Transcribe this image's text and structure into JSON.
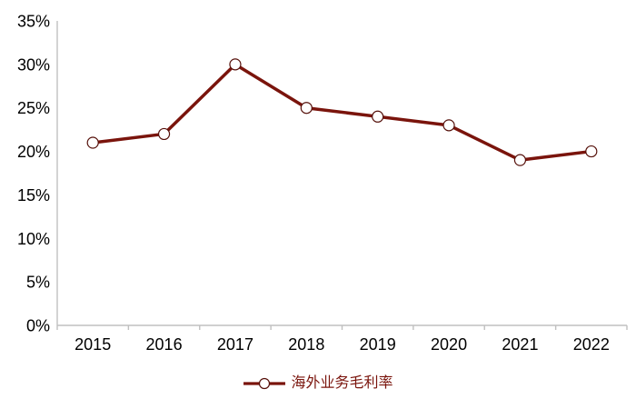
{
  "chart_data": {
    "type": "line",
    "title": "",
    "categories": [
      "2015",
      "2016",
      "2017",
      "2018",
      "2019",
      "2020",
      "2021",
      "2022"
    ],
    "series": [
      {
        "name": "海外业务毛利率",
        "values": [
          21,
          22,
          30,
          25,
          24,
          23,
          19,
          20
        ]
      }
    ],
    "ylim": [
      0,
      35
    ],
    "ytick_step": 5,
    "ytick_labels": [
      "0%",
      "5%",
      "10%",
      "15%",
      "20%",
      "25%",
      "30%",
      "35%"
    ],
    "xlabel": "",
    "ylabel": "",
    "grid": false,
    "legend_position": "bottom-center",
    "colors": {
      "line": "#7a140c",
      "marker_fill": "#ffffff",
      "marker_stroke": "#55100a",
      "axis": "#c0c0c0",
      "tick_label": "#000000",
      "legend_text": "#7a140c",
      "background": "#ffffff"
    }
  }
}
